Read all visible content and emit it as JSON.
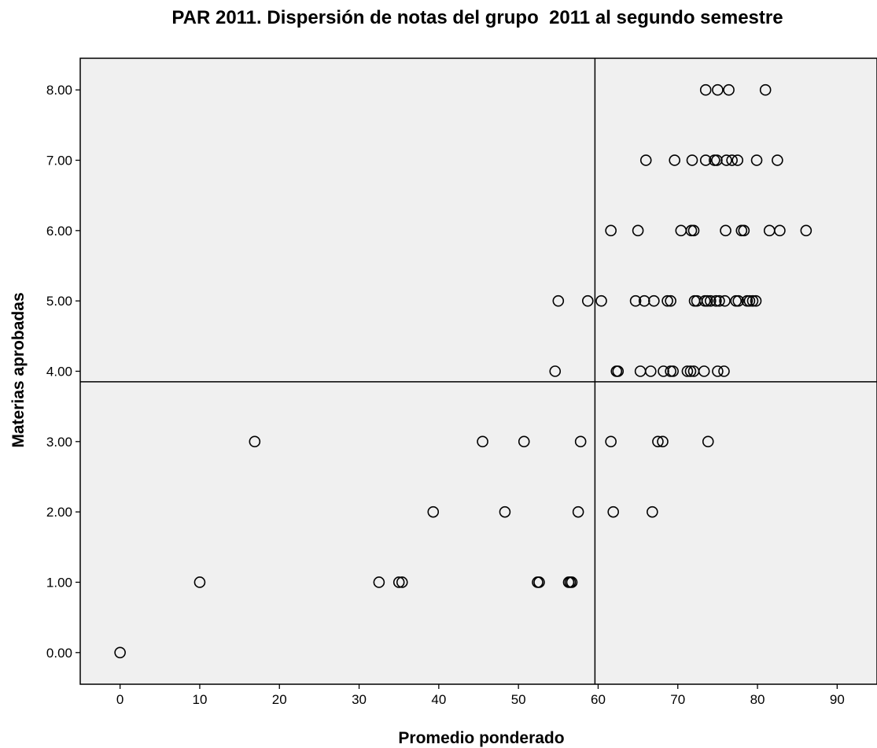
{
  "chart_data": {
    "type": "scatter",
    "title": "PAR 2011. Dispersión de notas del grupo  2011 al segundo semestre",
    "xlabel": "Promedio ponderado",
    "ylabel": "Materias aprobadas",
    "xlim": [
      -5,
      95
    ],
    "ylim": [
      -0.45,
      8.45
    ],
    "x_ticks": [
      0,
      10,
      20,
      30,
      40,
      50,
      60,
      70,
      80,
      90
    ],
    "x_tick_labels": [
      "0",
      "10",
      "20",
      "30",
      "40",
      "50",
      "60",
      "70",
      "80",
      "90"
    ],
    "y_ticks": [
      0,
      1,
      2,
      3,
      4,
      5,
      6,
      7,
      8
    ],
    "y_tick_labels": [
      "0.00",
      "1.00",
      "2.00",
      "3.00",
      "4.00",
      "5.00",
      "6.00",
      "7.00",
      "8.00"
    ],
    "reference_lines": {
      "x": 59.6,
      "y": 3.85
    },
    "grid": false,
    "plot_background": "#f0f0f0",
    "marker": "open-circle",
    "marker_color": "#000000",
    "points": [
      [
        0.0,
        0
      ],
      [
        10.0,
        1
      ],
      [
        16.9,
        3
      ],
      [
        32.5,
        1
      ],
      [
        35.0,
        1
      ],
      [
        35.4,
        1
      ],
      [
        39.3,
        2
      ],
      [
        45.5,
        3
      ],
      [
        48.3,
        2
      ],
      [
        50.7,
        3
      ],
      [
        52.4,
        1
      ],
      [
        52.6,
        1
      ],
      [
        56.3,
        1
      ],
      [
        56.5,
        1
      ],
      [
        56.7,
        1
      ],
      [
        57.5,
        2
      ],
      [
        57.8,
        3
      ],
      [
        61.6,
        3
      ],
      [
        61.9,
        2
      ],
      [
        66.8,
        2
      ],
      [
        67.5,
        3
      ],
      [
        68.1,
        3
      ],
      [
        73.8,
        3
      ],
      [
        54.6,
        4
      ],
      [
        62.3,
        4
      ],
      [
        62.5,
        4
      ],
      [
        65.3,
        4
      ],
      [
        66.6,
        4
      ],
      [
        68.2,
        4
      ],
      [
        69.1,
        4
      ],
      [
        69.4,
        4
      ],
      [
        71.2,
        4
      ],
      [
        71.6,
        4
      ],
      [
        72.0,
        4
      ],
      [
        73.3,
        4
      ],
      [
        75.0,
        4
      ],
      [
        75.8,
        4
      ],
      [
        55.0,
        5
      ],
      [
        58.7,
        5
      ],
      [
        60.4,
        5
      ],
      [
        64.7,
        5
      ],
      [
        65.8,
        5
      ],
      [
        67.0,
        5
      ],
      [
        68.7,
        5
      ],
      [
        69.1,
        5
      ],
      [
        72.1,
        5
      ],
      [
        72.4,
        5
      ],
      [
        73.4,
        5
      ],
      [
        73.7,
        5
      ],
      [
        74.1,
        5
      ],
      [
        74.8,
        5
      ],
      [
        75.2,
        5
      ],
      [
        75.9,
        5
      ],
      [
        77.3,
        5
      ],
      [
        77.6,
        5
      ],
      [
        78.7,
        5
      ],
      [
        79.0,
        5
      ],
      [
        79.4,
        5
      ],
      [
        79.8,
        5
      ],
      [
        61.6,
        6
      ],
      [
        65.0,
        6
      ],
      [
        70.4,
        6
      ],
      [
        71.7,
        6
      ],
      [
        72.0,
        6
      ],
      [
        76.0,
        6
      ],
      [
        78.0,
        6
      ],
      [
        78.3,
        6
      ],
      [
        81.5,
        6
      ],
      [
        82.8,
        6
      ],
      [
        86.1,
        6
      ],
      [
        66.0,
        7
      ],
      [
        69.6,
        7
      ],
      [
        71.8,
        7
      ],
      [
        73.5,
        7
      ],
      [
        74.6,
        7
      ],
      [
        74.9,
        7
      ],
      [
        76.1,
        7
      ],
      [
        76.8,
        7
      ],
      [
        77.5,
        7
      ],
      [
        79.9,
        7
      ],
      [
        82.5,
        7
      ],
      [
        73.5,
        8
      ],
      [
        75.0,
        8
      ],
      [
        76.4,
        8
      ],
      [
        81.0,
        8
      ]
    ]
  }
}
